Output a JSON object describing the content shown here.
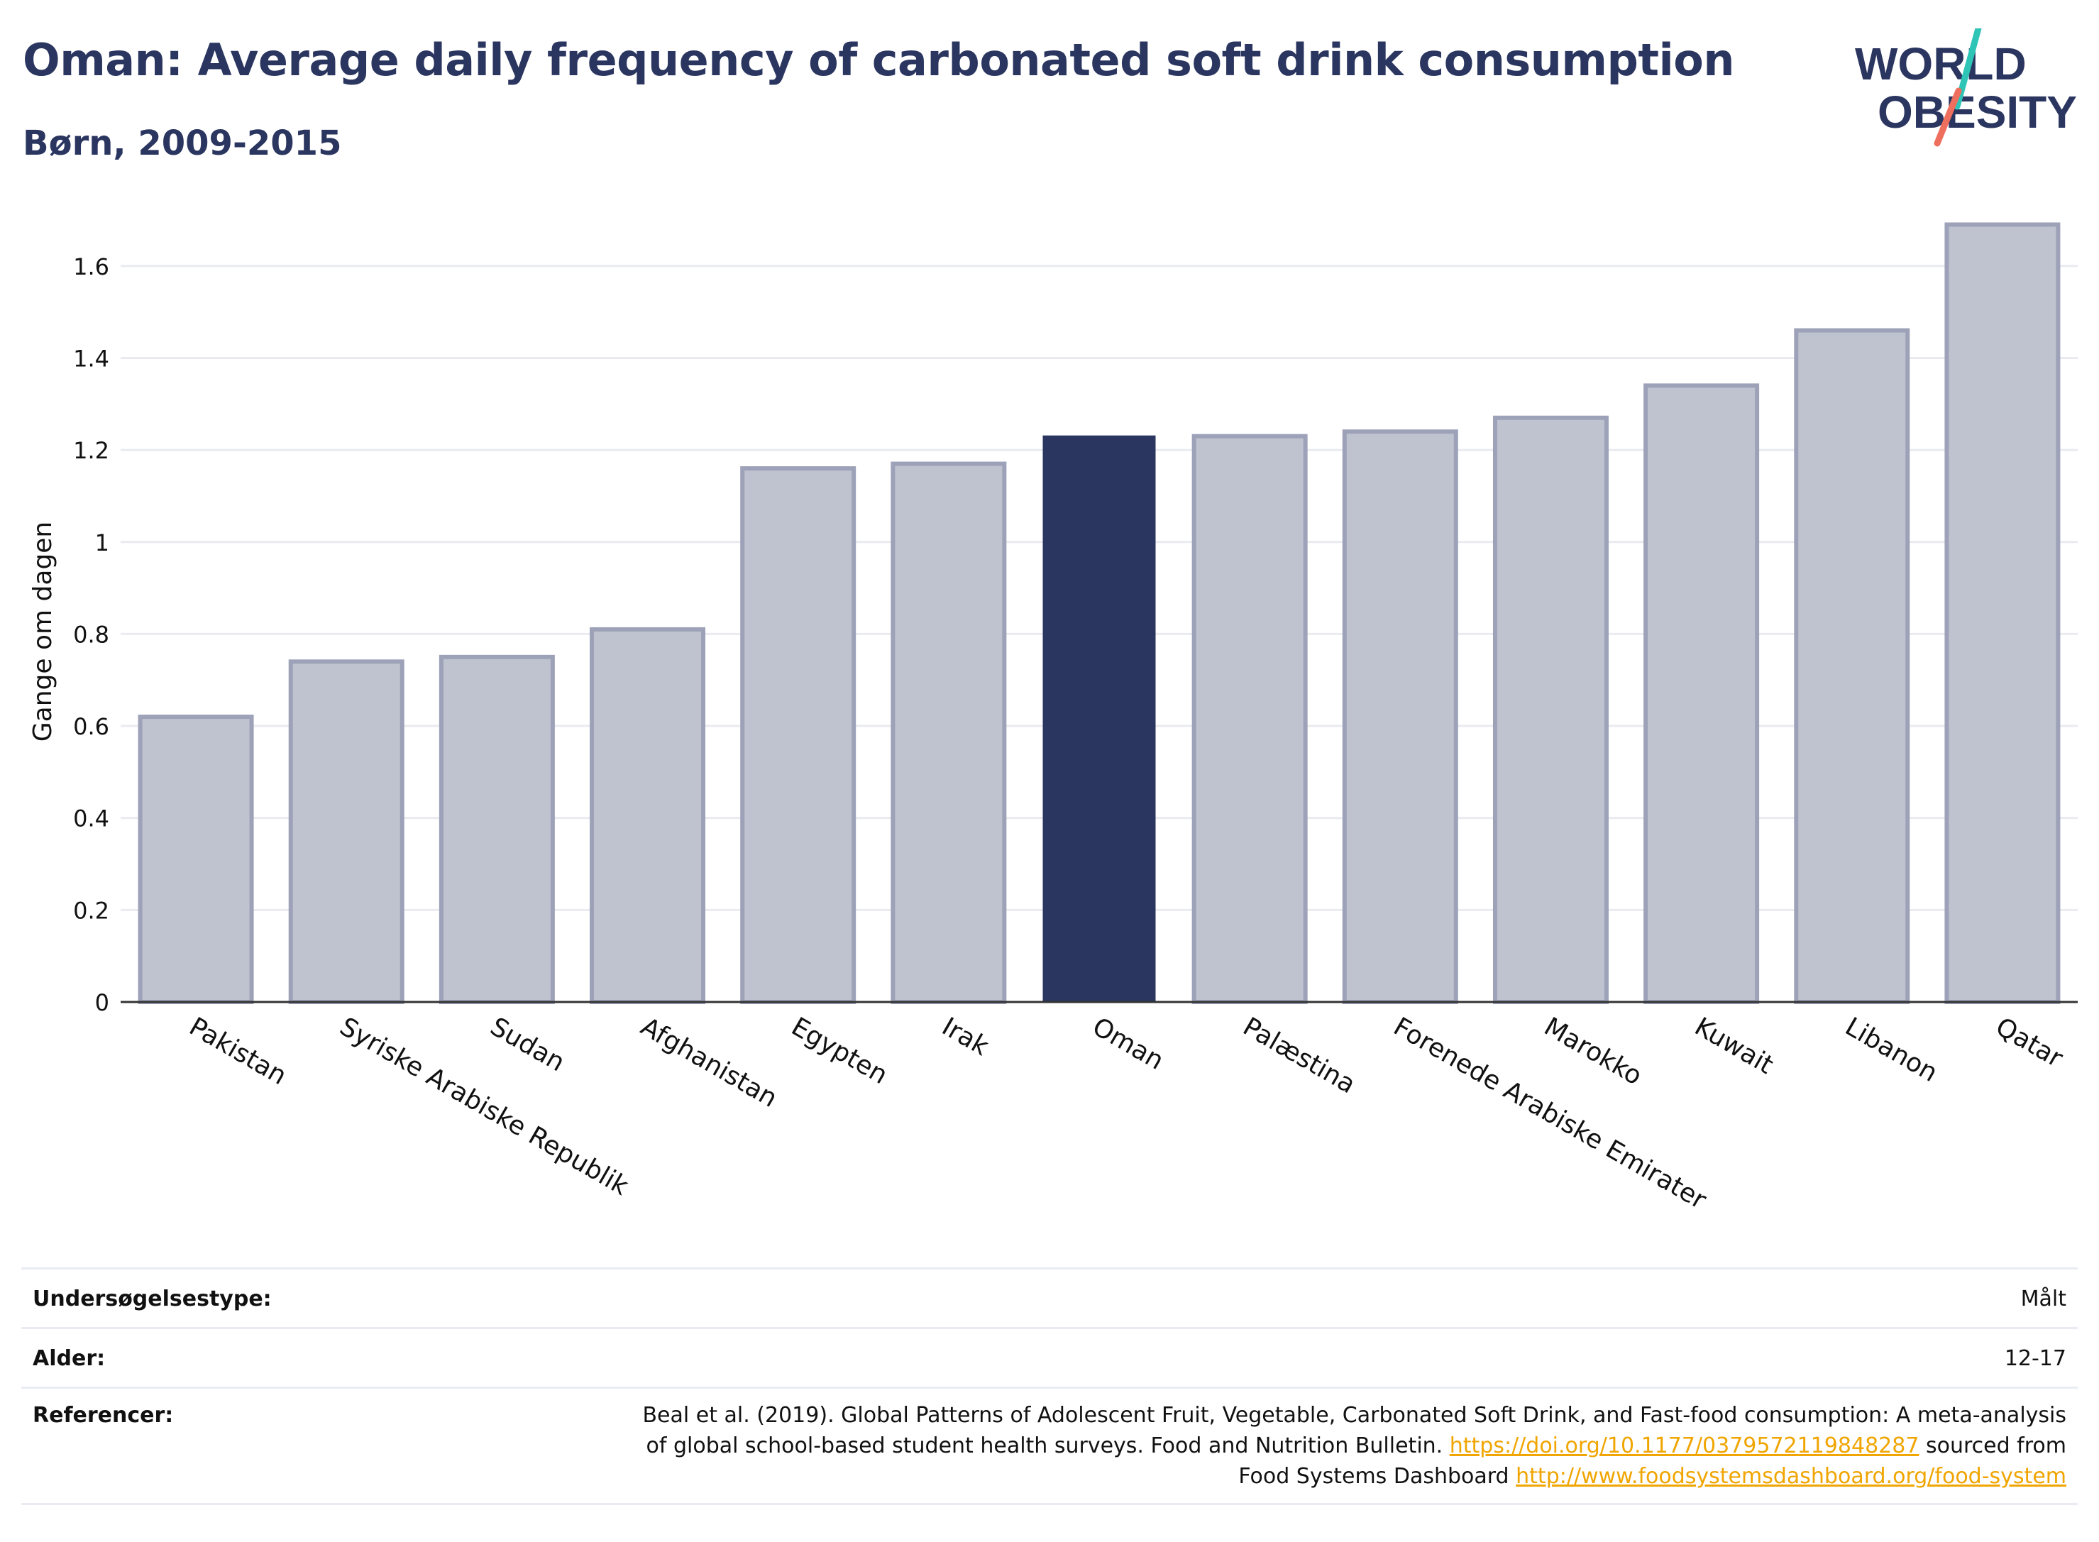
{
  "header": {
    "title": "Oman: Average daily frequency of carbonated soft drink consumption",
    "subtitle": "Børn, 2009-2015"
  },
  "logo": {
    "line1": "WORLD",
    "line2": "OBESITY",
    "accent_colors": [
      "#2ec4b6",
      "#ef6f5e"
    ]
  },
  "chart_data": {
    "type": "bar",
    "ylabel": "Gange om dagen",
    "ylim": [
      0,
      1.7
    ],
    "yticks": [
      0,
      0.2,
      0.4,
      0.6,
      0.8,
      1,
      1.2,
      1.4,
      1.6
    ],
    "ytick_labels": [
      "0",
      "0.2",
      "0.4",
      "0.6",
      "0.8",
      "1",
      "1.2",
      "1.4",
      "1.6"
    ],
    "categories": [
      "Pakistan",
      "Syriske Arabiske Republik",
      "Sudan",
      "Afghanistan",
      "Egypten",
      "Irak",
      "Oman",
      "Palæstina",
      "Forenede Arabiske Emirater",
      "Marokko",
      "Kuwait",
      "Libanon",
      "Qatar"
    ],
    "values": [
      0.62,
      0.74,
      0.75,
      0.81,
      1.16,
      1.17,
      1.23,
      1.23,
      1.24,
      1.27,
      1.34,
      1.46,
      1.69
    ],
    "highlight": "Oman",
    "colors": {
      "highlight": "#2b3660",
      "other_fill": "#bfc2cf",
      "other_stroke": "#9da2b8",
      "grid": "#e9ebf0",
      "axis": "#333333"
    },
    "grid": true
  },
  "meta": {
    "survey_type_label": "Undersøgelsestype:",
    "survey_type_value": "Målt",
    "age_label": "Alder:",
    "age_value": "12-17",
    "references_label": "Referencer:",
    "ref_line1": "Beal et al. (2019). Global Patterns of Adolescent Fruit, Vegetable, Carbonated Soft Drink, and Fast-food consumption: A meta-analysis",
    "ref_line2_text": "of global school-based student health surveys. Food and Nutrition Bulletin.",
    "ref_line2_link": "https://doi.org/10.1177/0379572119848287",
    "ref_line2_suffix": "sourced from",
    "ref_line3_text": "Food Systems Dashboard",
    "ref_line3_link": "http://www.foodsystemsdashboard.org/food-system"
  }
}
